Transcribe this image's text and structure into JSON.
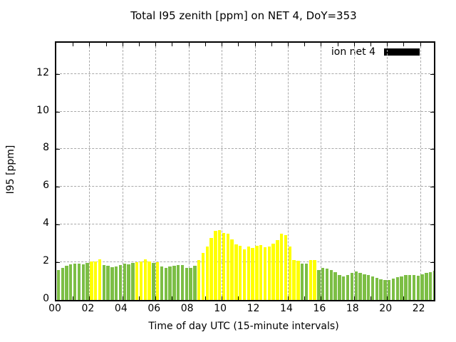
{
  "title": "Total I95 zenith [ppm] on NET 4, DoY=353",
  "legend": {
    "label": "ion net 4",
    "swatch_color": "#000000"
  },
  "colors": {
    "G": "#7cbe45",
    "Y": "#ffff00",
    "grid": "#a9a9a9",
    "border": "#000000"
  },
  "chart_data": {
    "type": "bar",
    "title": "Total I95 zenith [ppm] on NET 4, DoY=353",
    "xlabel": "Time of day UTC (15-minute intervals)",
    "ylabel": "I95 [ppm]",
    "legend_entries": [
      "ion net 4"
    ],
    "legend_position": "top-right-inside",
    "grid": true,
    "interval_minutes": 15,
    "x_ticks": [
      "00",
      "02",
      "04",
      "06",
      "08",
      "10",
      "12",
      "14",
      "16",
      "18",
      "20",
      "22"
    ],
    "y_ticks": [
      0,
      2,
      4,
      6,
      8,
      10,
      12
    ],
    "xlim_hours": [
      0,
      22.8333
    ],
    "ylim": [
      0,
      13.65
    ],
    "series": [
      {
        "name": "ion net 4",
        "color_rule": "yellow if value >= 2.0 ppm else green",
        "points": [
          {
            "t": "00:00",
            "v": 1.6,
            "c": "G"
          },
          {
            "t": "00:15",
            "v": 1.7,
            "c": "G"
          },
          {
            "t": "00:30",
            "v": 1.8,
            "c": "G"
          },
          {
            "t": "00:45",
            "v": 1.88,
            "c": "G"
          },
          {
            "t": "01:00",
            "v": 1.92,
            "c": "G"
          },
          {
            "t": "01:15",
            "v": 1.92,
            "c": "G"
          },
          {
            "t": "01:30",
            "v": 1.9,
            "c": "G"
          },
          {
            "t": "01:45",
            "v": 1.98,
            "c": "G"
          },
          {
            "t": "02:00",
            "v": 2.05,
            "c": "Y"
          },
          {
            "t": "02:15",
            "v": 2.05,
            "c": "Y"
          },
          {
            "t": "02:30",
            "v": 2.17,
            "c": "Y"
          },
          {
            "t": "02:45",
            "v": 1.84,
            "c": "G"
          },
          {
            "t": "03:00",
            "v": 1.8,
            "c": "G"
          },
          {
            "t": "03:15",
            "v": 1.75,
            "c": "G"
          },
          {
            "t": "03:30",
            "v": 1.77,
            "c": "G"
          },
          {
            "t": "03:45",
            "v": 1.87,
            "c": "G"
          },
          {
            "t": "04:00",
            "v": 1.92,
            "c": "G"
          },
          {
            "t": "04:15",
            "v": 1.9,
            "c": "G"
          },
          {
            "t": "04:30",
            "v": 1.95,
            "c": "G"
          },
          {
            "t": "04:45",
            "v": 2.02,
            "c": "Y"
          },
          {
            "t": "05:00",
            "v": 2.05,
            "c": "Y"
          },
          {
            "t": "05:15",
            "v": 2.17,
            "c": "Y"
          },
          {
            "t": "05:30",
            "v": 2.05,
            "c": "Y"
          },
          {
            "t": "05:45",
            "v": 1.96,
            "c": "G"
          },
          {
            "t": "06:00",
            "v": 2.02,
            "c": "Y"
          },
          {
            "t": "06:15",
            "v": 1.77,
            "c": "G"
          },
          {
            "t": "06:30",
            "v": 1.71,
            "c": "G"
          },
          {
            "t": "06:45",
            "v": 1.77,
            "c": "G"
          },
          {
            "t": "07:00",
            "v": 1.81,
            "c": "G"
          },
          {
            "t": "07:15",
            "v": 1.87,
            "c": "G"
          },
          {
            "t": "07:30",
            "v": 1.86,
            "c": "G"
          },
          {
            "t": "07:45",
            "v": 1.72,
            "c": "G"
          },
          {
            "t": "08:00",
            "v": 1.7,
            "c": "G"
          },
          {
            "t": "08:15",
            "v": 1.81,
            "c": "G"
          },
          {
            "t": "08:30",
            "v": 2.13,
            "c": "Y"
          },
          {
            "t": "08:45",
            "v": 2.5,
            "c": "Y"
          },
          {
            "t": "09:00",
            "v": 2.82,
            "c": "Y"
          },
          {
            "t": "09:15",
            "v": 3.29,
            "c": "Y"
          },
          {
            "t": "09:30",
            "v": 3.66,
            "c": "Y"
          },
          {
            "t": "09:45",
            "v": 3.71,
            "c": "Y"
          },
          {
            "t": "10:00",
            "v": 3.56,
            "c": "Y"
          },
          {
            "t": "10:15",
            "v": 3.5,
            "c": "Y"
          },
          {
            "t": "10:30",
            "v": 3.21,
            "c": "Y"
          },
          {
            "t": "10:45",
            "v": 2.94,
            "c": "Y"
          },
          {
            "t": "11:00",
            "v": 2.88,
            "c": "Y"
          },
          {
            "t": "11:15",
            "v": 2.69,
            "c": "Y"
          },
          {
            "t": "11:30",
            "v": 2.82,
            "c": "Y"
          },
          {
            "t": "11:45",
            "v": 2.76,
            "c": "Y"
          },
          {
            "t": "12:00",
            "v": 2.88,
            "c": "Y"
          },
          {
            "t": "12:15",
            "v": 2.9,
            "c": "Y"
          },
          {
            "t": "12:30",
            "v": 2.78,
            "c": "Y"
          },
          {
            "t": "12:45",
            "v": 2.84,
            "c": "Y"
          },
          {
            "t": "13:00",
            "v": 3.0,
            "c": "Y"
          },
          {
            "t": "13:15",
            "v": 3.17,
            "c": "Y"
          },
          {
            "t": "13:30",
            "v": 3.5,
            "c": "Y"
          },
          {
            "t": "13:45",
            "v": 3.44,
            "c": "Y"
          },
          {
            "t": "14:00",
            "v": 2.82,
            "c": "Y"
          },
          {
            "t": "14:15",
            "v": 2.1,
            "c": "Y"
          },
          {
            "t": "14:30",
            "v": 2.07,
            "c": "Y"
          },
          {
            "t": "14:45",
            "v": 1.92,
            "c": "G"
          },
          {
            "t": "15:00",
            "v": 1.92,
            "c": "G"
          },
          {
            "t": "15:15",
            "v": 2.1,
            "c": "Y"
          },
          {
            "t": "15:30",
            "v": 2.12,
            "c": "Y"
          },
          {
            "t": "15:45",
            "v": 1.6,
            "c": "G"
          },
          {
            "t": "16:00",
            "v": 1.72,
            "c": "G"
          },
          {
            "t": "16:15",
            "v": 1.65,
            "c": "G"
          },
          {
            "t": "16:30",
            "v": 1.58,
            "c": "G"
          },
          {
            "t": "16:45",
            "v": 1.46,
            "c": "G"
          },
          {
            "t": "17:00",
            "v": 1.34,
            "c": "G"
          },
          {
            "t": "17:15",
            "v": 1.25,
            "c": "G"
          },
          {
            "t": "17:30",
            "v": 1.32,
            "c": "G"
          },
          {
            "t": "17:45",
            "v": 1.42,
            "c": "G"
          },
          {
            "t": "18:00",
            "v": 1.5,
            "c": "G"
          },
          {
            "t": "18:15",
            "v": 1.44,
            "c": "G"
          },
          {
            "t": "18:30",
            "v": 1.38,
            "c": "G"
          },
          {
            "t": "18:45",
            "v": 1.33,
            "c": "G"
          },
          {
            "t": "19:00",
            "v": 1.26,
            "c": "G"
          },
          {
            "t": "19:15",
            "v": 1.18,
            "c": "G"
          },
          {
            "t": "19:30",
            "v": 1.1,
            "c": "G"
          },
          {
            "t": "19:45",
            "v": 1.05,
            "c": "G"
          },
          {
            "t": "20:00",
            "v": 1.07,
            "c": "G"
          },
          {
            "t": "20:15",
            "v": 1.15,
            "c": "G"
          },
          {
            "t": "20:30",
            "v": 1.2,
            "c": "G"
          },
          {
            "t": "20:45",
            "v": 1.26,
            "c": "G"
          },
          {
            "t": "21:00",
            "v": 1.31,
            "c": "G"
          },
          {
            "t": "21:15",
            "v": 1.34,
            "c": "G"
          },
          {
            "t": "21:30",
            "v": 1.34,
            "c": "G"
          },
          {
            "t": "21:45",
            "v": 1.3,
            "c": "G"
          },
          {
            "t": "22:00",
            "v": 1.37,
            "c": "G"
          },
          {
            "t": "22:15",
            "v": 1.43,
            "c": "G"
          },
          {
            "t": "22:30",
            "v": 1.49,
            "c": "G"
          },
          {
            "t": "22:45",
            "v": 1.55,
            "c": "G"
          }
        ]
      }
    ]
  }
}
